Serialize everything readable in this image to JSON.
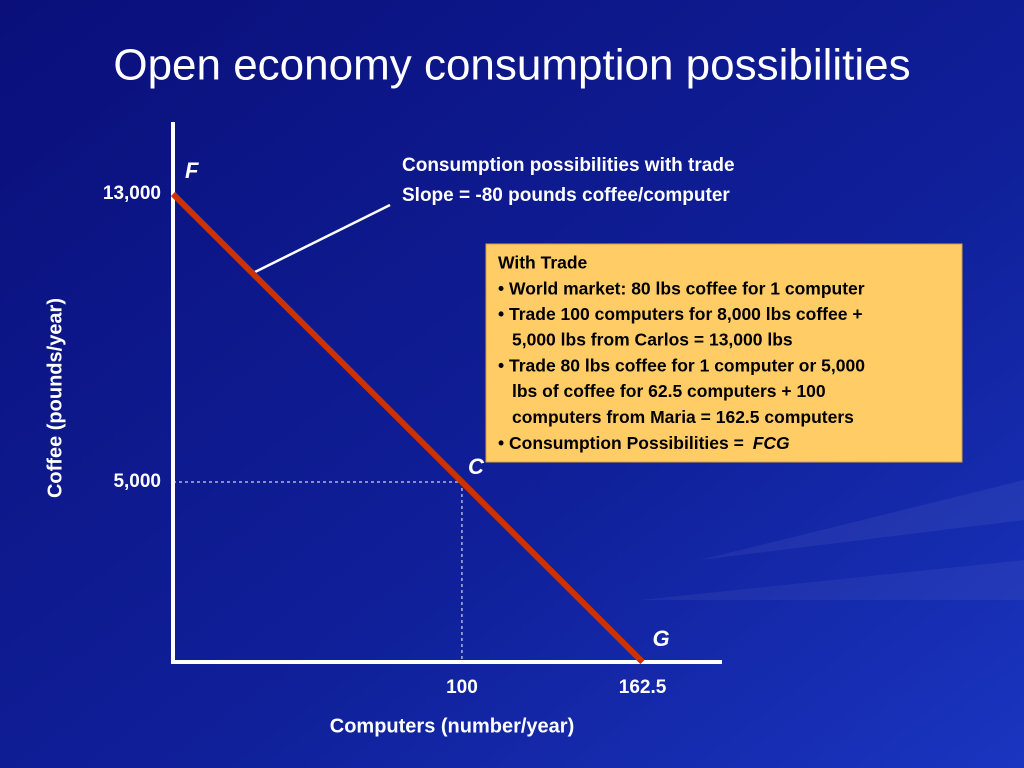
{
  "chart_data": {
    "type": "line",
    "title": "Open economy consumption possibilities",
    "x_label": "Computers (number/year)",
    "y_label": "Coffee (pounds/year)",
    "x": [
      0,
      100,
      162.5
    ],
    "series": [
      {
        "name": "Consumption possibilities with trade",
        "color": "#cc3300",
        "values": [
          13000,
          5000,
          0
        ]
      }
    ],
    "point_labels": [
      "F",
      "C",
      "G"
    ],
    "xlim": [
      0,
      190
    ],
    "ylim": [
      0,
      15000
    ],
    "xticks": [
      100,
      162.5
    ],
    "yticks": [
      {
        "value": 5000,
        "label": "5,000"
      },
      {
        "value": 13000,
        "label": "13,000"
      }
    ],
    "callout": [
      "Consumption possibilities with trade",
      "Slope = -80 pounds coffee/computer"
    ],
    "box": {
      "lines": [
        "With Trade",
        "• World market: 80 lbs coffee for 1 computer",
        "• Trade 100 computers for 8,000 lbs coffee +",
        "5,000 lbs from Carlos = 13,000 lbs",
        "• Trade 80 lbs coffee for 1 computer or 5,000",
        "lbs of coffee for 62.5 computers + 100",
        "computers from Maria = 162.5 computers"
      ],
      "last_line": "• Consumption Possibilities = ",
      "last_line_italic": "FCG"
    }
  }
}
